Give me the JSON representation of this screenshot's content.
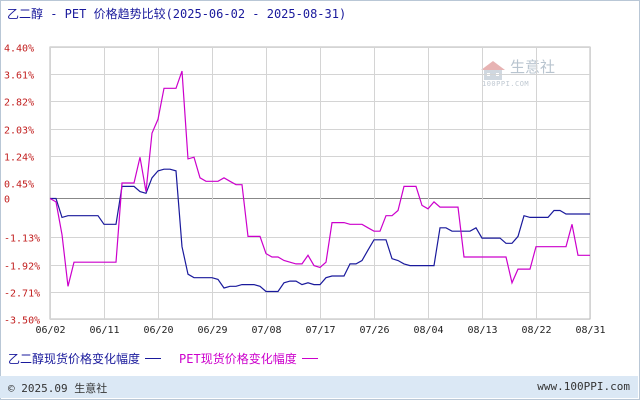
{
  "title": "乙二醇 - PET 价格趋势比较(2025-06-02 - 2025-08-31)",
  "legend": {
    "series1_label": "乙二醇现货价格变化幅度",
    "series2_label": "PET现货价格变化幅度"
  },
  "watermark": {
    "name": "生意社",
    "url": "100PPI.COM"
  },
  "footer": {
    "left": "© 2025.09 生意社",
    "right": "www.100PPI.com"
  },
  "colors": {
    "series1": "#1a1a9c",
    "series2": "#cc00cc",
    "ytick": "#c21f1f",
    "grid": "#d4d4d4",
    "zero": "#888888"
  },
  "chart_data": {
    "type": "line",
    "title": "乙二醇 - PET 价格趋势比较(2025-06-02 - 2025-08-31)",
    "ylim": [
      -3.5,
      4.4
    ],
    "yticks": [
      4.4,
      3.61,
      2.82,
      2.03,
      1.24,
      0.45,
      0,
      -1.13,
      -1.92,
      -2.71,
      -3.5
    ],
    "ytick_labels": [
      "4.40%",
      "3.61%",
      "2.82%",
      "2.03%",
      "1.24%",
      "0.45%",
      "0",
      "-1.13%",
      "-1.92%",
      "-2.71%",
      "-3.50%"
    ],
    "xlim": [
      0,
      90
    ],
    "xticks": [
      0,
      9,
      18,
      27,
      36,
      45,
      54,
      63,
      72,
      81,
      90
    ],
    "xtick_labels": [
      "06/02",
      "06/11",
      "06/20",
      "06/29",
      "07/08",
      "07/17",
      "07/26",
      "08/04",
      "08/13",
      "08/22",
      "08/31"
    ],
    "grid": true,
    "legend_position": "bottom",
    "series": [
      {
        "name": "乙二醇现货价格变化幅度",
        "x": [
          0,
          1,
          2,
          3,
          4,
          5,
          6,
          7,
          8,
          9,
          10,
          11,
          12,
          13,
          14,
          15,
          16,
          17,
          18,
          19,
          20,
          21,
          22,
          23,
          24,
          25,
          26,
          27,
          28,
          29,
          30,
          31,
          32,
          33,
          34,
          35,
          36,
          37,
          38,
          39,
          40,
          41,
          42,
          43,
          44,
          45,
          46,
          47,
          48,
          49,
          50,
          51,
          52,
          53,
          54,
          55,
          56,
          57,
          58,
          59,
          60,
          61,
          62,
          63,
          64,
          65,
          66,
          67,
          68,
          69,
          70,
          71,
          72,
          73,
          74,
          75,
          76,
          77,
          78,
          79,
          80,
          81,
          82,
          83,
          84,
          85,
          86,
          87,
          88,
          89,
          90
        ],
        "values": [
          0.0,
          0.0,
          -0.55,
          -0.5,
          -0.5,
          -0.5,
          -0.5,
          -0.5,
          -0.5,
          -0.75,
          -0.75,
          -0.75,
          0.35,
          0.35,
          0.35,
          0.2,
          0.15,
          0.6,
          0.8,
          0.85,
          0.85,
          0.8,
          -1.4,
          -2.2,
          -2.3,
          -2.3,
          -2.3,
          -2.3,
          -2.35,
          -2.6,
          -2.55,
          -2.55,
          -2.5,
          -2.5,
          -2.5,
          -2.55,
          -2.7,
          -2.7,
          -2.7,
          -2.45,
          -2.4,
          -2.4,
          -2.5,
          -2.45,
          -2.5,
          -2.5,
          -2.3,
          -2.25,
          -2.25,
          -2.25,
          -1.9,
          -1.9,
          -1.8,
          -1.5,
          -1.2,
          -1.2,
          -1.2,
          -1.75,
          -1.8,
          -1.9,
          -1.95,
          -1.95,
          -1.95,
          -1.95,
          -1.95,
          -0.85,
          -0.85,
          -0.95,
          -0.95,
          -0.95,
          -0.95,
          -0.85,
          -1.15,
          -1.15,
          -1.15,
          -1.15,
          -1.3,
          -1.3,
          -1.1,
          -0.5,
          -0.55,
          -0.55,
          -0.55,
          -0.55,
          -0.35,
          -0.35,
          -0.45,
          -0.45,
          -0.45,
          -0.45,
          -0.45
        ]
      },
      {
        "name": "PET现货价格变化幅度",
        "x": [
          0,
          1,
          2,
          3,
          4,
          5,
          6,
          7,
          8,
          9,
          10,
          11,
          12,
          13,
          14,
          15,
          16,
          17,
          18,
          19,
          20,
          21,
          22,
          23,
          24,
          25,
          26,
          27,
          28,
          29,
          30,
          31,
          32,
          33,
          34,
          35,
          36,
          37,
          38,
          39,
          40,
          41,
          42,
          43,
          44,
          45,
          46,
          47,
          48,
          49,
          50,
          51,
          52,
          53,
          54,
          55,
          56,
          57,
          58,
          59,
          60,
          61,
          62,
          63,
          64,
          65,
          66,
          67,
          68,
          69,
          70,
          71,
          72,
          73,
          74,
          75,
          76,
          77,
          78,
          79,
          80,
          81,
          82,
          83,
          84,
          85,
          86,
          87,
          88,
          89,
          90
        ],
        "values": [
          0.0,
          -0.1,
          -1.05,
          -2.55,
          -1.85,
          -1.85,
          -1.85,
          -1.85,
          -1.85,
          -1.85,
          -1.85,
          -1.85,
          0.45,
          0.45,
          0.45,
          1.2,
          0.2,
          1.9,
          2.3,
          3.2,
          3.2,
          3.2,
          3.7,
          1.15,
          1.2,
          0.6,
          0.5,
          0.5,
          0.5,
          0.6,
          0.5,
          0.4,
          0.4,
          -1.1,
          -1.1,
          -1.1,
          -1.6,
          -1.7,
          -1.7,
          -1.8,
          -1.85,
          -1.9,
          -1.9,
          -1.65,
          -1.95,
          -2.0,
          -1.85,
          -0.7,
          -0.7,
          -0.7,
          -0.75,
          -0.75,
          -0.75,
          -0.85,
          -0.95,
          -0.95,
          -0.5,
          -0.5,
          -0.35,
          0.35,
          0.35,
          0.35,
          -0.2,
          -0.3,
          -0.1,
          -0.25,
          -0.25,
          -0.25,
          -0.25,
          -1.7,
          -1.7,
          -1.7,
          -1.7,
          -1.7,
          -1.7,
          -1.7,
          -1.7,
          -2.45,
          -2.05,
          -2.05,
          -2.05,
          -1.4,
          -1.4,
          -1.4,
          -1.4,
          -1.4,
          -1.4,
          -0.75,
          -1.65,
          -1.65,
          -1.65
        ]
      }
    ]
  }
}
